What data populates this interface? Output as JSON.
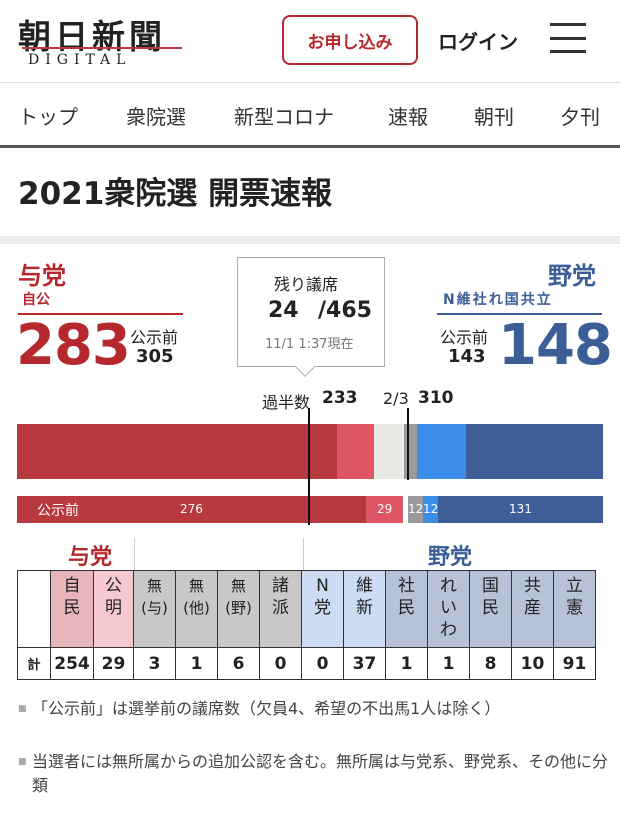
{
  "header": {
    "logo_main": "朝日新聞",
    "logo_sub": "DIGITAL",
    "signup_label": "お申し込み",
    "login_label": "ログイン"
  },
  "tabs": [
    "トップ",
    "衆院選",
    "新型コロナ",
    "速報",
    "朝刊",
    "夕刊"
  ],
  "page_title": "2021衆院選 開票速報",
  "ruling": {
    "label": "与党",
    "parties": "自公",
    "seats": "283",
    "pre_label": "公示前",
    "pre_seats": "305",
    "color": "#b5292e"
  },
  "opposition": {
    "label": "野党",
    "parties": "N維社れ国共立",
    "seats": "148",
    "pre_label": "公示前",
    "pre_seats": "143",
    "color": "#3b5e96"
  },
  "remaining": {
    "label": "残り議席",
    "count": "24",
    "total": "/465",
    "time": "11/1 1:37現在"
  },
  "thresholds": {
    "majority_label": "過半数",
    "majority_value": "233",
    "twothirds_label": "2/3",
    "twothirds_value": "310"
  },
  "bar_main": [
    {
      "key": "ldp",
      "seats": 254,
      "color": "#b83a3f"
    },
    {
      "key": "komei",
      "seats": 29,
      "color": "#de5566"
    },
    {
      "key": "remaining",
      "seats": 24,
      "color": "#ebebe6"
    },
    {
      "key": "independent",
      "seats": 10,
      "color": "#9a9a9a"
    },
    {
      "key": "opp-minor",
      "seats": 39,
      "color": "#3c8de8"
    },
    {
      "key": "opp-major",
      "seats": 109,
      "color": "#3e5e98"
    }
  ],
  "bar_pre": [
    {
      "key": "ldp",
      "seats": 276,
      "label": "276",
      "color": "#b83a3f"
    },
    {
      "key": "komei",
      "seats": 29,
      "label": "29",
      "color": "#de5566"
    },
    {
      "key": "gap",
      "seats": 4,
      "label": "",
      "color": "#ffffff"
    },
    {
      "key": "independent",
      "seats": 12,
      "label": "12",
      "color": "#9a9a9a"
    },
    {
      "key": "opp-minor",
      "seats": 12,
      "label": "12",
      "color": "#3c8de8"
    },
    {
      "key": "opp-major",
      "seats": 131,
      "label": "131",
      "color": "#3e5e98"
    }
  ],
  "bar_pre_label": "公示前",
  "seat_table": {
    "group_ruling": "与党",
    "group_opposition": "野党",
    "total_label": "計",
    "parties": [
      {
        "name": "自\n民",
        "seats": "254",
        "color": "#e7b6bb"
      },
      {
        "name": "公\n明",
        "seats": "29",
        "color": "#f6c9d1"
      },
      {
        "name": "無\n(与)",
        "seats": "3",
        "color": "#c8c8c8"
      },
      {
        "name": "無\n(他)",
        "seats": "1",
        "color": "#c8c8c8"
      },
      {
        "name": "無\n(野)",
        "seats": "6",
        "color": "#c8c8c8"
      },
      {
        "name": "諸\n派",
        "seats": "0",
        "color": "#c8c8c8"
      },
      {
        "name": "N\n党",
        "seats": "0",
        "color": "#cbdcf3"
      },
      {
        "name": "維\n新",
        "seats": "37",
        "color": "#cbdcf3"
      },
      {
        "name": "社\n民",
        "seats": "1",
        "color": "#b8c2d6"
      },
      {
        "name": "れ\nい\nわ",
        "seats": "1",
        "color": "#b8c2d6"
      },
      {
        "name": "国\n民",
        "seats": "8",
        "color": "#b8c2d6"
      },
      {
        "name": "共\n産",
        "seats": "10",
        "color": "#b8c2d6"
      },
      {
        "name": "立\n憲",
        "seats": "91",
        "color": "#b8c2d6"
      }
    ]
  },
  "notes": [
    "「公示前」は選挙前の議席数（欠員4、希望の不出馬1人は除く）",
    "当選者には無所属からの追加公認を含む。無所属は与党系、野党系、その他に分類"
  ]
}
